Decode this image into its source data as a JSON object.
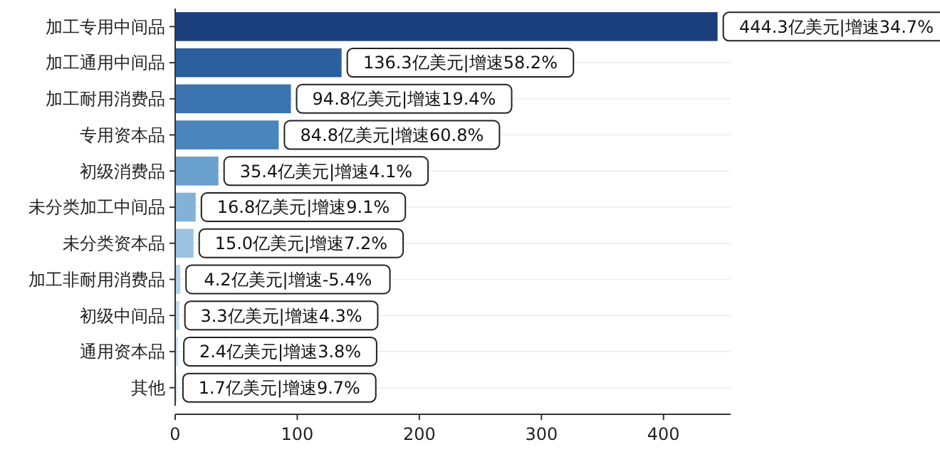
{
  "chart_data": {
    "type": "bar",
    "orientation": "horizontal",
    "categories": [
      "加工专用中间品",
      "加工通用中间品",
      "加工耐用消费品",
      "专用资本品",
      "初级消费品",
      "未分类加工中间品",
      "未分类资本品",
      "加工非耐用消费品",
      "初级中间品",
      "通用资本品",
      "其他"
    ],
    "values": [
      444.3,
      136.3,
      94.8,
      84.8,
      35.4,
      16.8,
      15.0,
      4.2,
      3.3,
      2.4,
      1.7
    ],
    "colors": [
      "#1b3f7c",
      "#2c5f9e",
      "#3b74b0",
      "#4a85bc",
      "#6aa0cc",
      "#83b2d8",
      "#9ac2e1",
      "#b3d1ea",
      "#c3dbef",
      "#d2e3f3",
      "#dde9f6"
    ],
    "value_labels": [
      "444.3亿美元|增速34.7%",
      "136.3亿美元|增速58.2%",
      "94.8亿美元|增速19.4%",
      "84.8亿美元|增速60.8%",
      "35.4亿美元|增速4.1%",
      "16.8亿美元|增速9.1%",
      "15.0亿美元|增速7.2%",
      "4.2亿美元|增速-5.4%",
      "3.3亿美元|增速4.3%",
      "2.4亿美元|增速3.8%",
      "1.7亿美元|增速9.7%"
    ],
    "xlim": [
      0,
      455
    ],
    "xticks": [
      0,
      100,
      200,
      300,
      400
    ],
    "grid": "y"
  }
}
